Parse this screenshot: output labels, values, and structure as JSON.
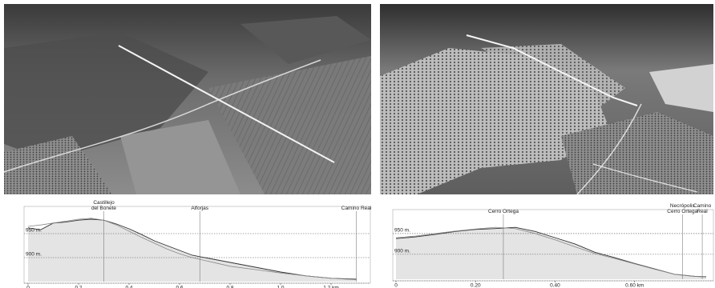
{
  "chart_data": [
    {
      "type": "line",
      "x": [
        0,
        0.05,
        0.1,
        0.15,
        0.2,
        0.25,
        0.3,
        0.35,
        0.4,
        0.45,
        0.5,
        0.55,
        0.6,
        0.65,
        0.7,
        0.75,
        0.8,
        0.9,
        1.0,
        1.1,
        1.2,
        1.3
      ],
      "series": [
        {
          "color": "#333333",
          "values": [
            962,
            958,
            972,
            974,
            978,
            980,
            978,
            970,
            960,
            948,
            935,
            925,
            915,
            905,
            900,
            895,
            890,
            880,
            870,
            862,
            857,
            855
          ]
        },
        {
          "color": "#8a8a8a",
          "values": [
            965,
            968,
            972,
            976,
            980,
            982,
            978,
            968,
            955,
            942,
            930,
            918,
            908,
            900,
            894,
            888,
            882,
            875,
            868,
            862,
            857,
            854
          ]
        }
      ],
      "xlim": [
        0,
        1.33
      ],
      "ylim": [
        850,
        1000
      ],
      "xticks": [
        0,
        0.2,
        0.4,
        0.6,
        0.8,
        {
          "value": 1.0,
          "label": "1.0"
        },
        {
          "value": 1.2,
          "label": "1.2 km"
        }
      ],
      "yticks": [
        {
          "value": 950,
          "label": "950 m."
        },
        {
          "value": 900,
          "label": "900 m."
        }
      ],
      "annotations": [
        {
          "text": "Castillejo\ndel Bonete",
          "x": 0.3
        },
        {
          "text": "Alforjas",
          "x": 0.68
        },
        {
          "text": "Camino Real",
          "x": 1.3
        }
      ]
    },
    {
      "type": "line",
      "x": [
        0,
        0.05,
        0.1,
        0.15,
        0.2,
        0.25,
        0.3,
        0.35,
        0.4,
        0.45,
        0.5,
        0.55,
        0.6,
        0.65,
        0.7,
        0.75,
        0.78
      ],
      "series": [
        {
          "color": "#333333",
          "values": [
            938,
            942,
            948,
            955,
            960,
            962,
            965,
            955,
            940,
            925,
            905,
            892,
            878,
            865,
            852,
            847,
            846
          ]
        },
        {
          "color": "#8a8a8a",
          "values": [
            940,
            944,
            950,
            956,
            961,
            965,
            962,
            950,
            935,
            918,
            902,
            890,
            877,
            864,
            852,
            847,
            845
          ]
        }
      ],
      "xlim": [
        0,
        0.79
      ],
      "ylim": [
        840,
        1000
      ],
      "xticks": [
        0,
        {
          "value": 0.2,
          "label": "0.20"
        },
        {
          "value": 0.4,
          "label": "0.40"
        },
        {
          "value": 0.6,
          "label": "0.60 km"
        }
      ],
      "yticks": [
        {
          "value": 950,
          "label": "950 m."
        },
        {
          "value": 900,
          "label": "900 m."
        }
      ],
      "annotations": [
        {
          "text": "Cerro Ortega",
          "x": 0.27
        },
        {
          "text": "Necrópolis\nCerro Ortega",
          "x": 0.72
        },
        {
          "text": "Camino\nReal",
          "x": 0.77
        }
      ]
    }
  ]
}
